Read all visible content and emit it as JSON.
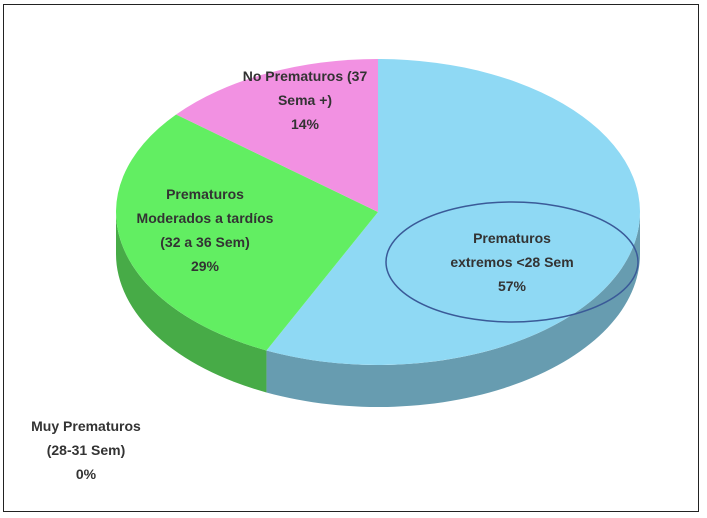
{
  "chart_data": {
    "type": "pie",
    "categories": [
      "Prematuros extremos <28 Sem",
      "Muy Prematuros (28-31 Sem)",
      "Prematuros Moderados a tardíos (32 a 36 Sem)",
      "No Prematuros (37 Sema +)"
    ],
    "values": [
      57,
      0,
      29,
      14
    ],
    "value_labels": [
      "57%",
      "0%",
      "29%",
      "14%"
    ],
    "colors": [
      "#8fd9f4",
      "#c0c0c0",
      "#62ee62",
      "#f291e2"
    ]
  }
}
